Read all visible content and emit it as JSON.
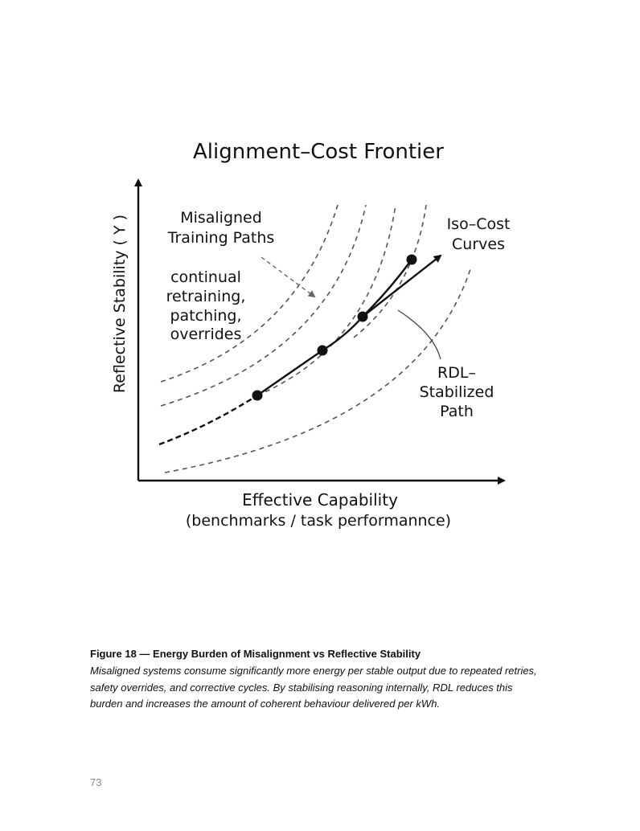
{
  "figure": {
    "title": "Alignment–Cost Frontier",
    "y_axis_label": "Reflective Stability ( Υ )",
    "x_axis_label": [
      "Effective Capability",
      "(benchmarks / task performannce)"
    ],
    "annotations": {
      "misaligned": [
        "Misaligned",
        "Training Paths"
      ],
      "misaligned_detail": [
        "continual",
        "retraining,",
        "patching,",
        "overrides"
      ],
      "iso_cost": [
        "Iso–Cost",
        "Curves"
      ],
      "rdl": [
        "RDL–",
        "Stabilized",
        "Path"
      ]
    }
  },
  "caption": {
    "label": "Figure 18 — Energy Burden of Misalignment vs Reflective Stability",
    "lines": [
      "Misaligned systems consume significantly more energy per stable output due to repeated retries,",
      "safety overrides, and corrective cycles. By stabilising reasoning internally, RDL reduces this",
      "burden and increases the amount of coherent behaviour delivered per kWh."
    ]
  },
  "page_number": "73"
}
